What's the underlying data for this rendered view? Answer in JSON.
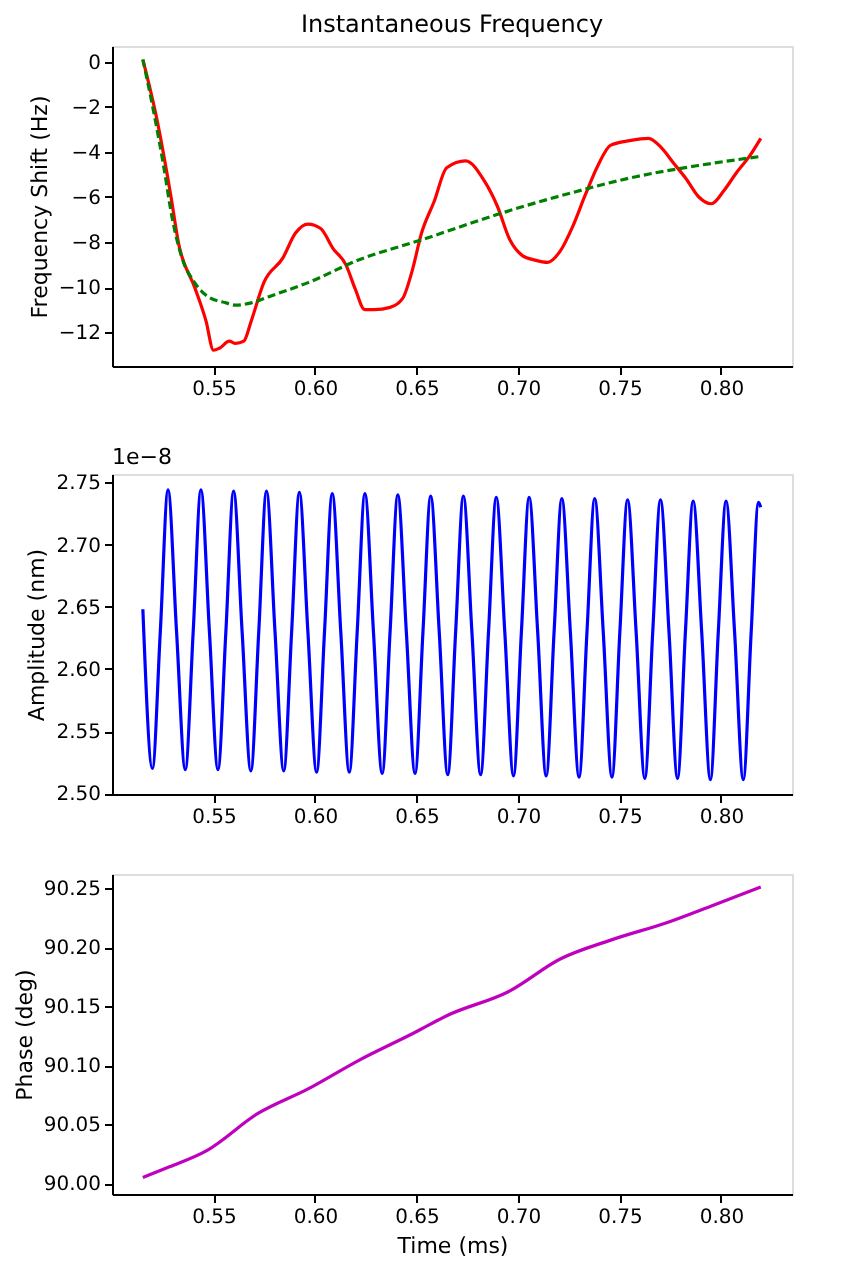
{
  "chart_data": [
    {
      "type": "line",
      "title": "Instantaneous Frequency",
      "ylabel": "Frequency Shift (Hz)",
      "xlim": [
        0.5,
        0.835
      ],
      "xticks": [
        0.55,
        {
          "value": 0.6,
          "label": "0.60"
        },
        0.65,
        {
          "value": 0.7,
          "label": "0.70"
        },
        0.75,
        {
          "value": 0.8,
          "label": "0.80"
        }
      ],
      "ylim": [
        -13.5,
        0.7
      ],
      "yticks": [
        -12,
        -10,
        -8,
        -6,
        -4,
        -2,
        0
      ],
      "grid": false,
      "series": [
        {
          "color": "#ff0000",
          "line_style": "solid",
          "x": [
            0.5152,
            0.522,
            0.5289,
            0.5329,
            0.5407,
            0.5463,
            0.55,
            0.5531,
            0.5578,
            0.5609,
            0.5649,
            0.5686,
            0.5748,
            0.5842,
            0.5904,
            0.5966,
            0.6028,
            0.609,
            0.6152,
            0.6199,
            0.6245,
            0.6292,
            0.637,
            0.6432,
            0.6478,
            0.6525,
            0.6587,
            0.6649,
            0.6742,
            0.6835,
            0.6898,
            0.696,
            0.7022,
            0.7084,
            0.7146,
            0.7208,
            0.727,
            0.7332,
            0.7394,
            0.7457,
            0.755,
            0.7643,
            0.7705,
            0.7767,
            0.7829,
            0.7891,
            0.7953,
            0.8016,
            0.8078,
            0.814,
            0.8196
          ],
          "values": [
            0.1,
            -2.5,
            -5.9,
            -8.1,
            -10.0,
            -11.5,
            -12.8,
            -12.7,
            -12.4,
            -12.5,
            -12.4,
            -11.5,
            -9.8,
            -8.7,
            -7.6,
            -7.2,
            -7.4,
            -8.3,
            -9.0,
            -10.1,
            -11.0,
            -11.0,
            -10.9,
            -10.5,
            -9.3,
            -7.6,
            -6.2,
            -4.7,
            -4.4,
            -5.3,
            -6.4,
            -7.9,
            -8.6,
            -8.8,
            -8.9,
            -8.4,
            -7.3,
            -5.9,
            -4.6,
            -3.7,
            -3.5,
            -3.4,
            -3.8,
            -4.5,
            -5.2,
            -6.0,
            -6.3,
            -5.7,
            -4.9,
            -4.2,
            -3.4
          ]
        },
        {
          "color": "#008000",
          "line_style": "dashed",
          "x": [
            0.5152,
            0.5205,
            0.5252,
            0.5298,
            0.5345,
            0.5407,
            0.5469,
            0.5562,
            0.5609,
            0.5686,
            0.578,
            0.5966,
            0.6214,
            0.6525,
            0.696,
            0.727,
            0.7581,
            0.7891,
            0.8196
          ],
          "values": [
            0.1,
            -2.2,
            -4.5,
            -7.0,
            -8.7,
            -9.8,
            -10.4,
            -10.7,
            -10.8,
            -10.7,
            -10.4,
            -9.8,
            -8.8,
            -7.9,
            -6.6,
            -5.8,
            -5.1,
            -4.6,
            -4.2
          ]
        }
      ]
    },
    {
      "type": "line",
      "ylabel": "Amplitude (nm)",
      "annotations": [
        "1e−8"
      ],
      "xlim": [
        0.5,
        0.835
      ],
      "xticks": [
        0.55,
        {
          "value": 0.6,
          "label": "0.60"
        },
        0.65,
        {
          "value": 0.7,
          "label": "0.70"
        },
        0.75,
        {
          "value": 0.8,
          "label": "0.80"
        }
      ],
      "ylim": [
        2.4995,
        2.7567
      ],
      "yticks": [
        {
          "value": 2.5,
          "label": "2.50"
        },
        2.55,
        {
          "value": 2.6,
          "label": "2.60"
        },
        2.65,
        {
          "value": 2.7,
          "label": "2.70"
        },
        2.75
      ],
      "grid": false,
      "series": [
        {
          "color": "#0000ff",
          "line_style": "solid",
          "x": [
            0.5152,
            0.5199,
            0.5238,
            0.5276,
            0.5318,
            0.5361,
            0.54,
            0.5438,
            0.548,
            0.5522,
            0.5561,
            0.5599,
            0.5641,
            0.5684,
            0.5723,
            0.5761,
            0.5803,
            0.5846,
            0.5885,
            0.5923,
            0.5965,
            0.6008,
            0.6047,
            0.6085,
            0.6127,
            0.6169,
            0.6208,
            0.6246,
            0.6288,
            0.6331,
            0.637,
            0.6408,
            0.645,
            0.6493,
            0.6532,
            0.657,
            0.6612,
            0.6654,
            0.6693,
            0.6731,
            0.6773,
            0.6816,
            0.6855,
            0.6893,
            0.6935,
            0.6978,
            0.7017,
            0.7055,
            0.7097,
            0.7139,
            0.7178,
            0.7216,
            0.7258,
            0.7301,
            0.734,
            0.7378,
            0.742,
            0.7463,
            0.7502,
            0.754,
            0.7582,
            0.7625,
            0.7664,
            0.7702,
            0.7744,
            0.7786,
            0.7825,
            0.7863,
            0.7905,
            0.7948,
            0.7987,
            0.8025,
            0.8067,
            0.811,
            0.8149,
            0.8185,
            0.8196
          ],
          "values": [
            2.648,
            2.52,
            2.63,
            2.744,
            2.63,
            2.519,
            2.63,
            2.744,
            2.63,
            2.519,
            2.63,
            2.743,
            2.63,
            2.518,
            2.63,
            2.743,
            2.63,
            2.518,
            2.63,
            2.742,
            2.63,
            2.517,
            2.63,
            2.741,
            2.63,
            2.517,
            2.63,
            2.741,
            2.63,
            2.516,
            2.63,
            2.74,
            2.63,
            2.516,
            2.63,
            2.739,
            2.63,
            2.515,
            2.63,
            2.739,
            2.63,
            2.515,
            2.63,
            2.738,
            2.63,
            2.514,
            2.63,
            2.738,
            2.63,
            2.514,
            2.63,
            2.737,
            2.63,
            2.513,
            2.63,
            2.737,
            2.63,
            2.513,
            2.63,
            2.736,
            2.63,
            2.512,
            2.63,
            2.736,
            2.63,
            2.512,
            2.63,
            2.735,
            2.63,
            2.511,
            2.63,
            2.735,
            2.63,
            2.511,
            2.63,
            2.734,
            2.73
          ]
        }
      ]
    },
    {
      "type": "line",
      "xlabel": "Time (ms)",
      "ylabel": "Phase (deg)",
      "xlim": [
        0.5,
        0.835
      ],
      "xticks": [
        0.55,
        {
          "value": 0.6,
          "label": "0.60"
        },
        0.65,
        {
          "value": 0.7,
          "label": "0.70"
        },
        0.75,
        {
          "value": 0.8,
          "label": "0.80"
        }
      ],
      "ylim": [
        89.991,
        90.262
      ],
      "yticks": [
        {
          "value": 90.0,
          "label": "90.00"
        },
        90.05,
        {
          "value": 90.1,
          "label": "90.10"
        },
        90.15,
        {
          "value": 90.2,
          "label": "90.20"
        },
        90.25
      ],
      "grid": false,
      "series": [
        {
          "color": "#bf00bf",
          "line_style": "solid",
          "x": [
            0.5152,
            0.5283,
            0.5469,
            0.5717,
            0.5966,
            0.6214,
            0.6494,
            0.6649,
            0.696,
            0.7208,
            0.7457,
            0.7736,
            0.7953,
            0.8196
          ],
          "values": [
            90.005,
            90.014,
            90.028,
            90.059,
            90.08,
            90.104,
            90.128,
            90.142,
            90.163,
            90.19,
            90.206,
            90.221,
            90.235,
            90.251
          ]
        }
      ]
    }
  ]
}
